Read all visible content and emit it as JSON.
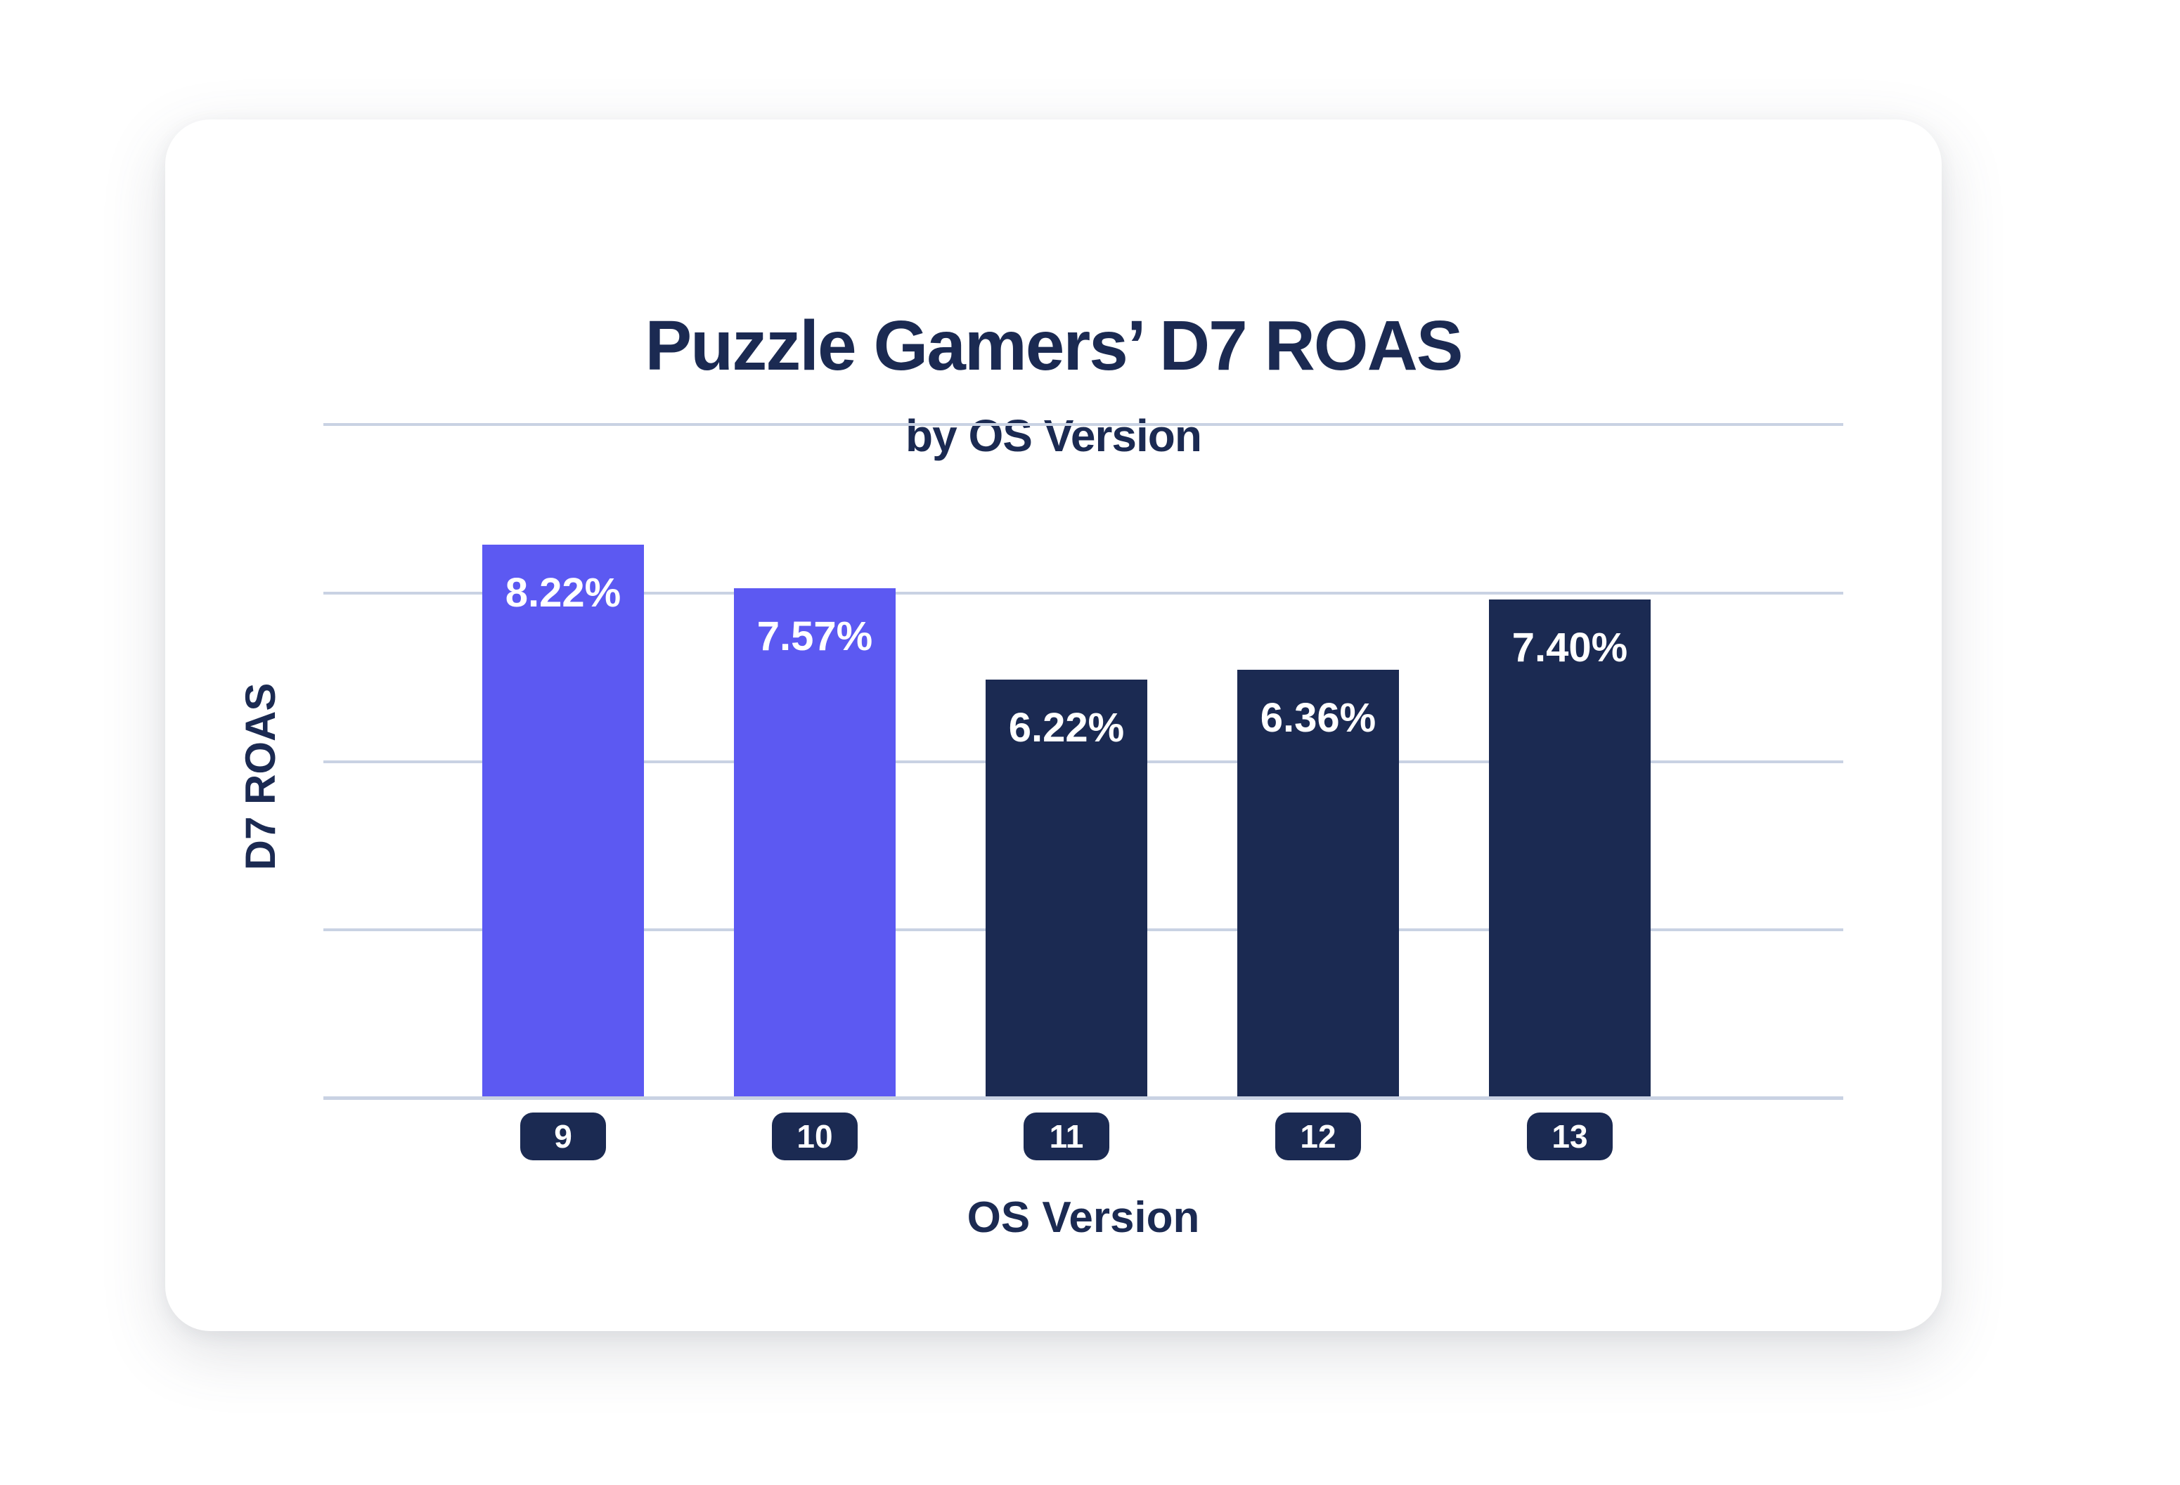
{
  "card": {
    "title": "Puzzle Gamers’ D7 ROAS",
    "subtitle": "by OS Version"
  },
  "chart_data": {
    "type": "bar",
    "title": "Puzzle Gamers’ D7 ROAS",
    "subtitle": "by OS Version",
    "xlabel": "OS Version",
    "ylabel": "D7 ROAS",
    "categories": [
      "9",
      "10",
      "11",
      "12",
      "13"
    ],
    "values": [
      8.22,
      7.57,
      6.22,
      6.36,
      7.4
    ],
    "value_labels": [
      "8.22%",
      "7.57%",
      "6.22%",
      "6.36%",
      "7.40%"
    ],
    "bar_colors": [
      "purple",
      "purple",
      "navy",
      "navy",
      "navy"
    ],
    "ylim": [
      0,
      10.2
    ],
    "gridline_values": [
      2.5,
      5,
      7.5,
      10
    ],
    "grid": "horizontal",
    "legend": "none",
    "y_tick_labels": "none"
  },
  "colors": {
    "purple": "#5C59F2",
    "navy": "#1B2A52",
    "gridline": "#C9D2E3",
    "card_background": "#FFFFFF",
    "value_label_text": "#FFFFFF",
    "tick_badge_text": "#FFFFFF"
  }
}
